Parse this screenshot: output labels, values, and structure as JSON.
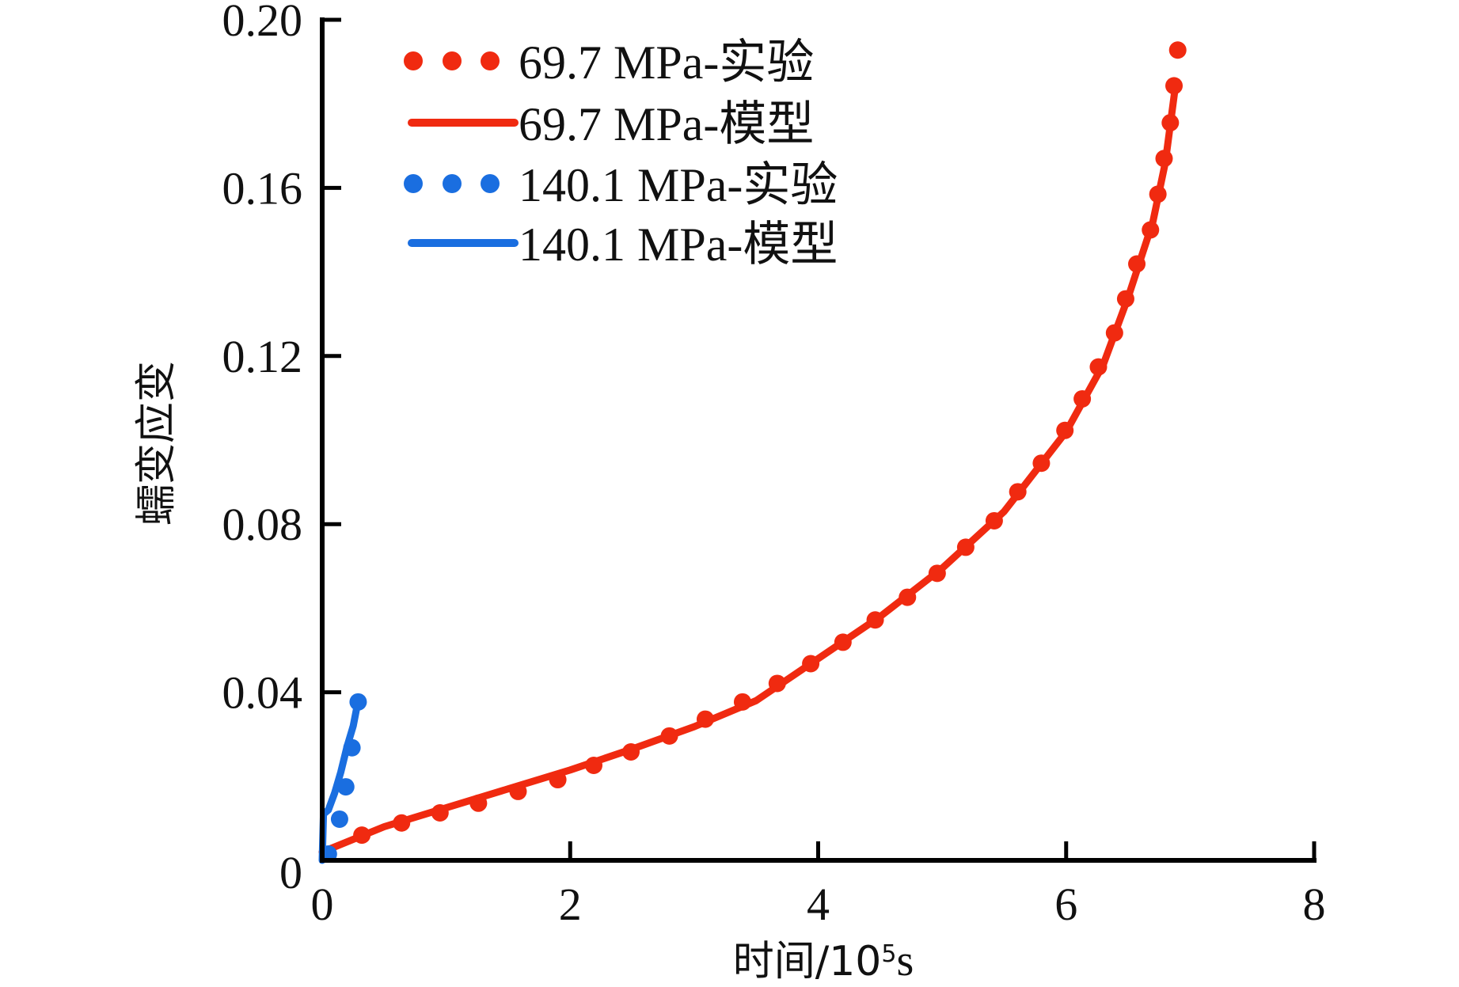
{
  "chart_data": {
    "type": "line",
    "title": "",
    "xlabel": "时间/10⁵s",
    "xlabel_parts": {
      "base": "时间/10",
      "sup": "5",
      "unit": "s"
    },
    "ylabel": "蠕变应变",
    "xlim": [
      0,
      8
    ],
    "ylim": [
      0,
      0.2
    ],
    "xticks": [
      0,
      2,
      4,
      6,
      8
    ],
    "xtick_labels": [
      "0",
      "2",
      "4",
      "6",
      "8"
    ],
    "yticks": [
      0,
      0.04,
      0.08,
      0.12,
      0.16,
      0.2
    ],
    "ytick_labels": [
      "0",
      "0.04",
      "0.08",
      "0.12",
      "0.16",
      "0.20"
    ],
    "grid": false,
    "legend_position": "top-left",
    "series": [
      {
        "name": "69.7 MPa-实验",
        "style": "dots",
        "color": "#f02a10",
        "x": [
          0.32,
          0.64,
          0.95,
          1.26,
          1.58,
          1.9,
          2.19,
          2.49,
          2.8,
          3.09,
          3.39,
          3.67,
          3.94,
          4.2,
          4.46,
          4.72,
          4.96,
          5.19,
          5.42,
          5.61,
          5.8,
          5.99,
          6.13,
          6.26,
          6.39,
          6.48,
          6.57,
          6.68,
          6.74,
          6.79,
          6.84,
          6.87,
          6.9
        ],
        "y": [
          0.006,
          0.0089,
          0.0113,
          0.0136,
          0.0164,
          0.0192,
          0.0226,
          0.0258,
          0.0296,
          0.0336,
          0.0377,
          0.0421,
          0.0468,
          0.0519,
          0.0572,
          0.0626,
          0.0683,
          0.0745,
          0.0808,
          0.0877,
          0.0945,
          0.1023,
          0.1098,
          0.1174,
          0.1255,
          0.1336,
          0.1419,
          0.15,
          0.1585,
          0.167,
          0.1755,
          0.1843,
          0.1928
        ]
      },
      {
        "name": "69.7 MPa-模型",
        "style": "line",
        "color": "#f02a10",
        "x": [
          0,
          0.5,
          1.0,
          1.5,
          2.0,
          2.5,
          3.0,
          3.5,
          4.0,
          4.5,
          5.0,
          5.5,
          6.0,
          6.3,
          6.5,
          6.7,
          6.8,
          6.88
        ],
        "y": [
          0.002,
          0.008,
          0.0125,
          0.017,
          0.0215,
          0.0265,
          0.0318,
          0.038,
          0.048,
          0.058,
          0.0695,
          0.083,
          0.102,
          0.118,
          0.134,
          0.152,
          0.166,
          0.184
        ]
      },
      {
        "name": "140.1 MPa-实验",
        "style": "dots",
        "color": "#1a6ee0",
        "x": [
          0.05,
          0.14,
          0.19,
          0.24,
          0.29
        ],
        "y": [
          0.0015,
          0.0098,
          0.0175,
          0.0268,
          0.0377
        ]
      },
      {
        "name": "140.1 MPa-模型",
        "style": "line",
        "color": "#1a6ee0",
        "x": [
          0,
          0.01,
          0.05,
          0.1,
          0.15,
          0.2,
          0.25,
          0.29
        ],
        "y": [
          0,
          0.011,
          0.012,
          0.016,
          0.021,
          0.027,
          0.032,
          0.038
        ]
      }
    ]
  }
}
